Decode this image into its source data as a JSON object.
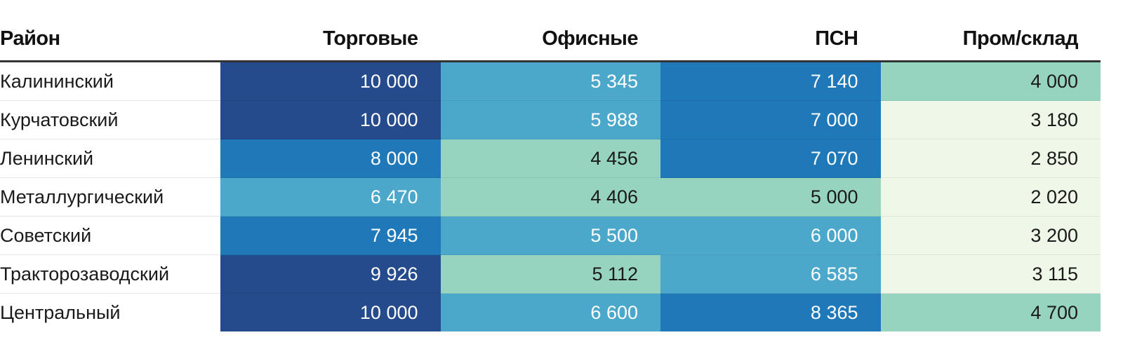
{
  "chart_data": {
    "type": "table",
    "columns": [
      "Район",
      "Торговые",
      "Офисные",
      "ПСН",
      "Пром/склад"
    ],
    "rows": [
      {
        "name": "Калининский",
        "values": [
          "10 000",
          "5 345",
          "7 140",
          "4 000"
        ],
        "raw": [
          10000,
          5345,
          7140,
          4000
        ]
      },
      {
        "name": "Курчатовский",
        "values": [
          "10 000",
          "5 988",
          "7 000",
          "3 180"
        ],
        "raw": [
          10000,
          5988,
          7000,
          3180
        ]
      },
      {
        "name": "Ленинский",
        "values": [
          "8 000",
          "4 456",
          "7 070",
          "2 850"
        ],
        "raw": [
          8000,
          4456,
          7070,
          2850
        ]
      },
      {
        "name": "Металлургический",
        "values": [
          "6 470",
          "4 406",
          "5 000",
          "2 020"
        ],
        "raw": [
          6470,
          4406,
          5000,
          2020
        ]
      },
      {
        "name": "Советский",
        "values": [
          "7 945",
          "5 500",
          "6 000",
          "3 200"
        ],
        "raw": [
          7945,
          5500,
          6000,
          3200
        ]
      },
      {
        "name": "Тракторозаводский",
        "values": [
          "9 926",
          "5 112",
          "6 585",
          "3 115"
        ],
        "raw": [
          9926,
          5112,
          6585,
          3115
        ]
      },
      {
        "name": "Центральный",
        "values": [
          "10 000",
          "6 600",
          "8 365",
          "4 700"
        ],
        "raw": [
          10000,
          6600,
          8365,
          4700
        ]
      }
    ],
    "color_scale": [
      {
        "min": 0,
        "fill": "#eff8e8",
        "text": "#1a1a1a"
      },
      {
        "min": 3500,
        "fill": "#97d4c0",
        "text": "#1a1a1a"
      },
      {
        "min": 5200,
        "fill": "#4ba8cb",
        "text": "#ffffff"
      },
      {
        "min": 6800,
        "fill": "#1f78b8",
        "text": "#ffffff"
      },
      {
        "min": 9000,
        "fill": "#254b8c",
        "text": "#ffffff"
      }
    ]
  }
}
